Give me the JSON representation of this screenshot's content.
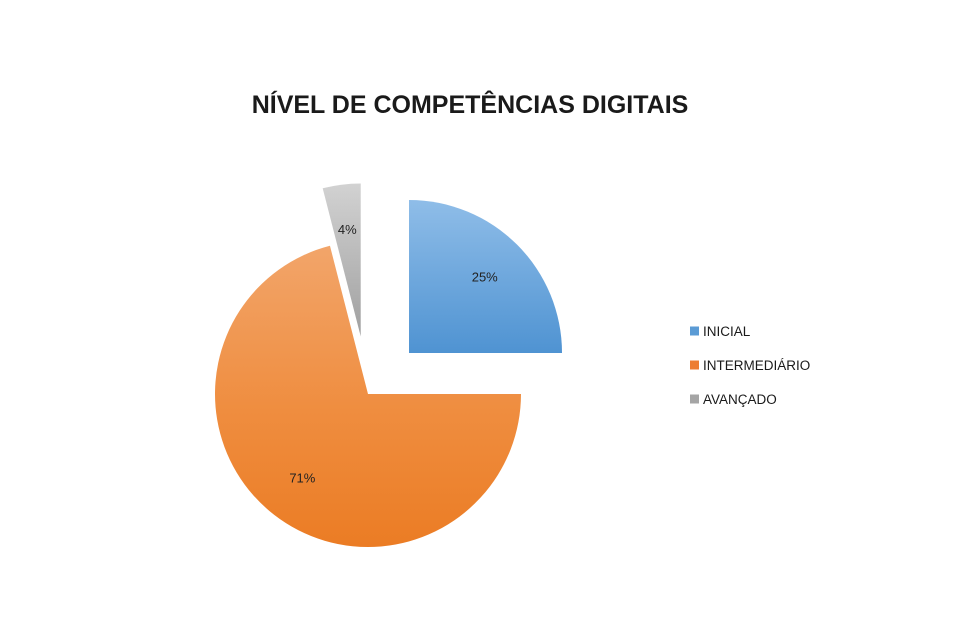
{
  "chart_data": {
    "type": "pie",
    "title": "NÍVEL DE COMPETÊNCIAS DIGITAIS",
    "slices": [
      {
        "label": "INICIAL",
        "value": 25,
        "value_label": "25%",
        "color": "#5b9bd5",
        "exploded": true
      },
      {
        "label": "INTERMEDIÁRIO",
        "value": 71,
        "value_label": "71%",
        "color": "#ed7d31",
        "exploded": false
      },
      {
        "label": "AVANÇADO",
        "value": 4,
        "value_label": "4%",
        "color": "#a5a5a5",
        "exploded": true
      }
    ],
    "legend_position": "right"
  }
}
